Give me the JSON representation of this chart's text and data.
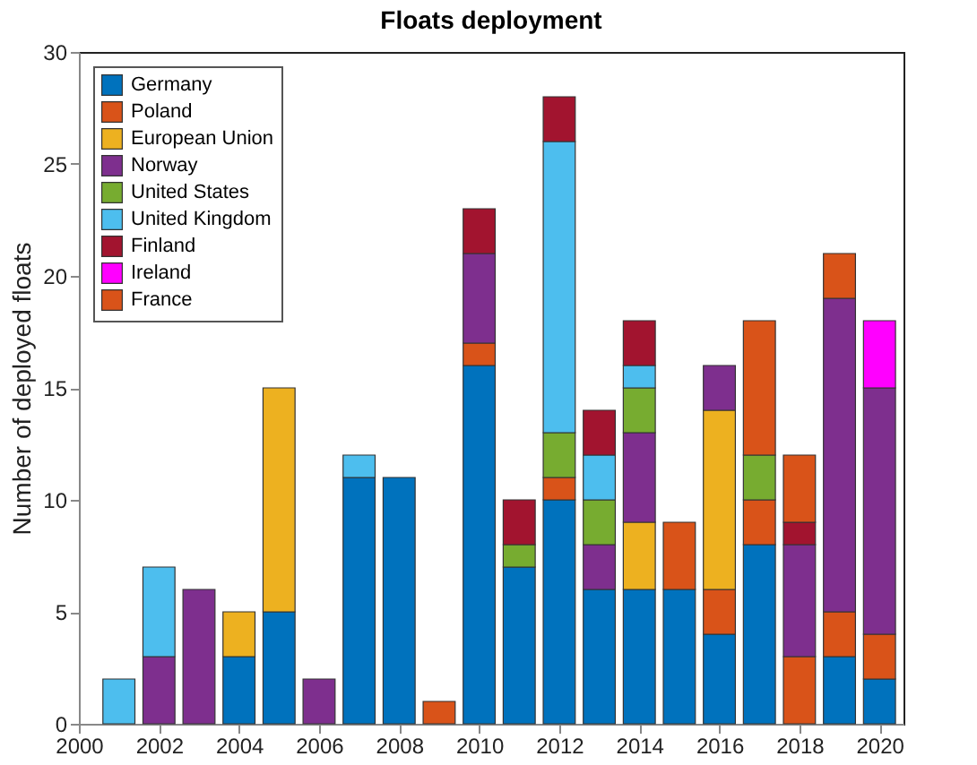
{
  "chart_data": {
    "type": "bar",
    "title": "Floats deployment",
    "ylabel": "Number of deployed floats",
    "stacked": true,
    "x": [
      2001,
      2002,
      2003,
      2004,
      2005,
      2006,
      2007,
      2008,
      2009,
      2010,
      2011,
      2012,
      2013,
      2014,
      2015,
      2016,
      2017,
      2018,
      2019,
      2020
    ],
    "series": [
      {
        "name": "Germany",
        "color": "#0072bd",
        "values": [
          null,
          null,
          null,
          3,
          5,
          null,
          11,
          11,
          null,
          16,
          7,
          10,
          6,
          6,
          6,
          4,
          8,
          null,
          3,
          2
        ]
      },
      {
        "name": "Poland",
        "color": "#d95319",
        "values": [
          null,
          null,
          null,
          null,
          null,
          null,
          null,
          null,
          1,
          1,
          null,
          1,
          null,
          null,
          3,
          2,
          2,
          3,
          2,
          2
        ]
      },
      {
        "name": "European Union",
        "color": "#edb120",
        "values": [
          null,
          null,
          null,
          2,
          10,
          null,
          null,
          null,
          null,
          null,
          null,
          null,
          null,
          3,
          null,
          8,
          null,
          null,
          null,
          null
        ]
      },
      {
        "name": "Norway",
        "color": "#7e2f8e",
        "values": [
          null,
          3,
          6,
          null,
          null,
          2,
          null,
          null,
          null,
          4,
          null,
          null,
          2,
          4,
          null,
          2,
          null,
          5,
          14,
          11
        ]
      },
      {
        "name": "United States",
        "color": "#77ac30",
        "values": [
          null,
          null,
          null,
          null,
          null,
          null,
          null,
          null,
          null,
          null,
          1,
          2,
          2,
          2,
          null,
          null,
          2,
          null,
          null,
          null
        ]
      },
      {
        "name": "United Kingdom",
        "color": "#4dbeee",
        "values": [
          2,
          4,
          null,
          null,
          null,
          null,
          1,
          null,
          null,
          null,
          null,
          13,
          2,
          1,
          null,
          null,
          null,
          null,
          null,
          null
        ]
      },
      {
        "name": "Finland",
        "color": "#a2142f",
        "values": [
          null,
          null,
          null,
          null,
          null,
          null,
          null,
          null,
          null,
          2,
          2,
          2,
          2,
          2,
          null,
          null,
          null,
          1,
          null,
          null
        ]
      },
      {
        "name": "Ireland",
        "color": "#ff00ff",
        "values": [
          null,
          null,
          null,
          null,
          null,
          null,
          null,
          null,
          null,
          null,
          null,
          null,
          null,
          null,
          null,
          null,
          null,
          null,
          null,
          3
        ]
      },
      {
        "name": "France",
        "color": "#d95319",
        "values": [
          null,
          null,
          null,
          null,
          null,
          null,
          null,
          null,
          null,
          null,
          null,
          null,
          null,
          null,
          null,
          null,
          6,
          3,
          2,
          null
        ]
      }
    ],
    "xlim": [
      2000,
      2020.6
    ],
    "xticks": [
      2000,
      2002,
      2004,
      2006,
      2008,
      2010,
      2012,
      2014,
      2016,
      2018,
      2020
    ],
    "ylim": [
      0,
      30
    ],
    "yticks": [
      0,
      5,
      10,
      15,
      20,
      25,
      30
    ],
    "grid": false,
    "legend": "top left"
  }
}
